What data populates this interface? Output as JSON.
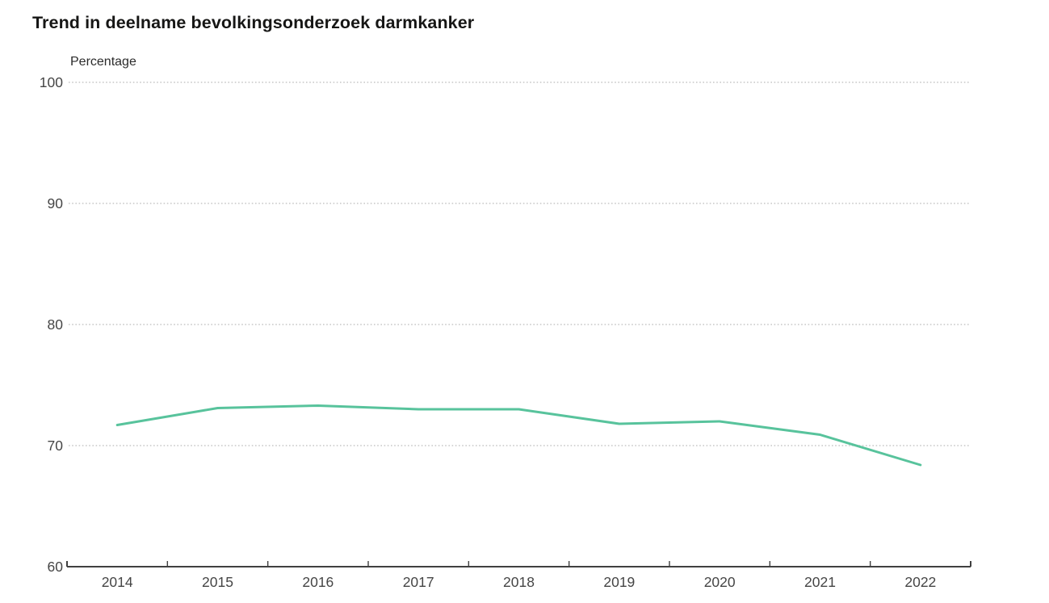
{
  "header": {
    "title": "Trend in deelname bevolkingsonderzoek darmkanker"
  },
  "chart_data": {
    "type": "line",
    "title": "Trend in deelname bevolkingsonderzoek darmkanker",
    "ylabel": "Percentage",
    "xlabel": "",
    "categories": [
      "2014",
      "2015",
      "2016",
      "2017",
      "2018",
      "2019",
      "2020",
      "2021",
      "2022"
    ],
    "series": [
      {
        "values": [
          71.7,
          73.1,
          73.3,
          73.0,
          73.0,
          71.8,
          72.0,
          70.9,
          68.4
        ],
        "color": "#58c39c"
      }
    ],
    "ylim": [
      60,
      100
    ],
    "y_ticks": [
      60,
      70,
      80,
      90,
      100
    ],
    "grid": "horizontal-dotted",
    "legend_position": "none"
  },
  "colors": {
    "line": "#58c39c",
    "gridline": "#c7c7c7",
    "axis": "#404040",
    "tick_label": "#454545",
    "title_text": "#161615",
    "background": "#ffffff"
  }
}
